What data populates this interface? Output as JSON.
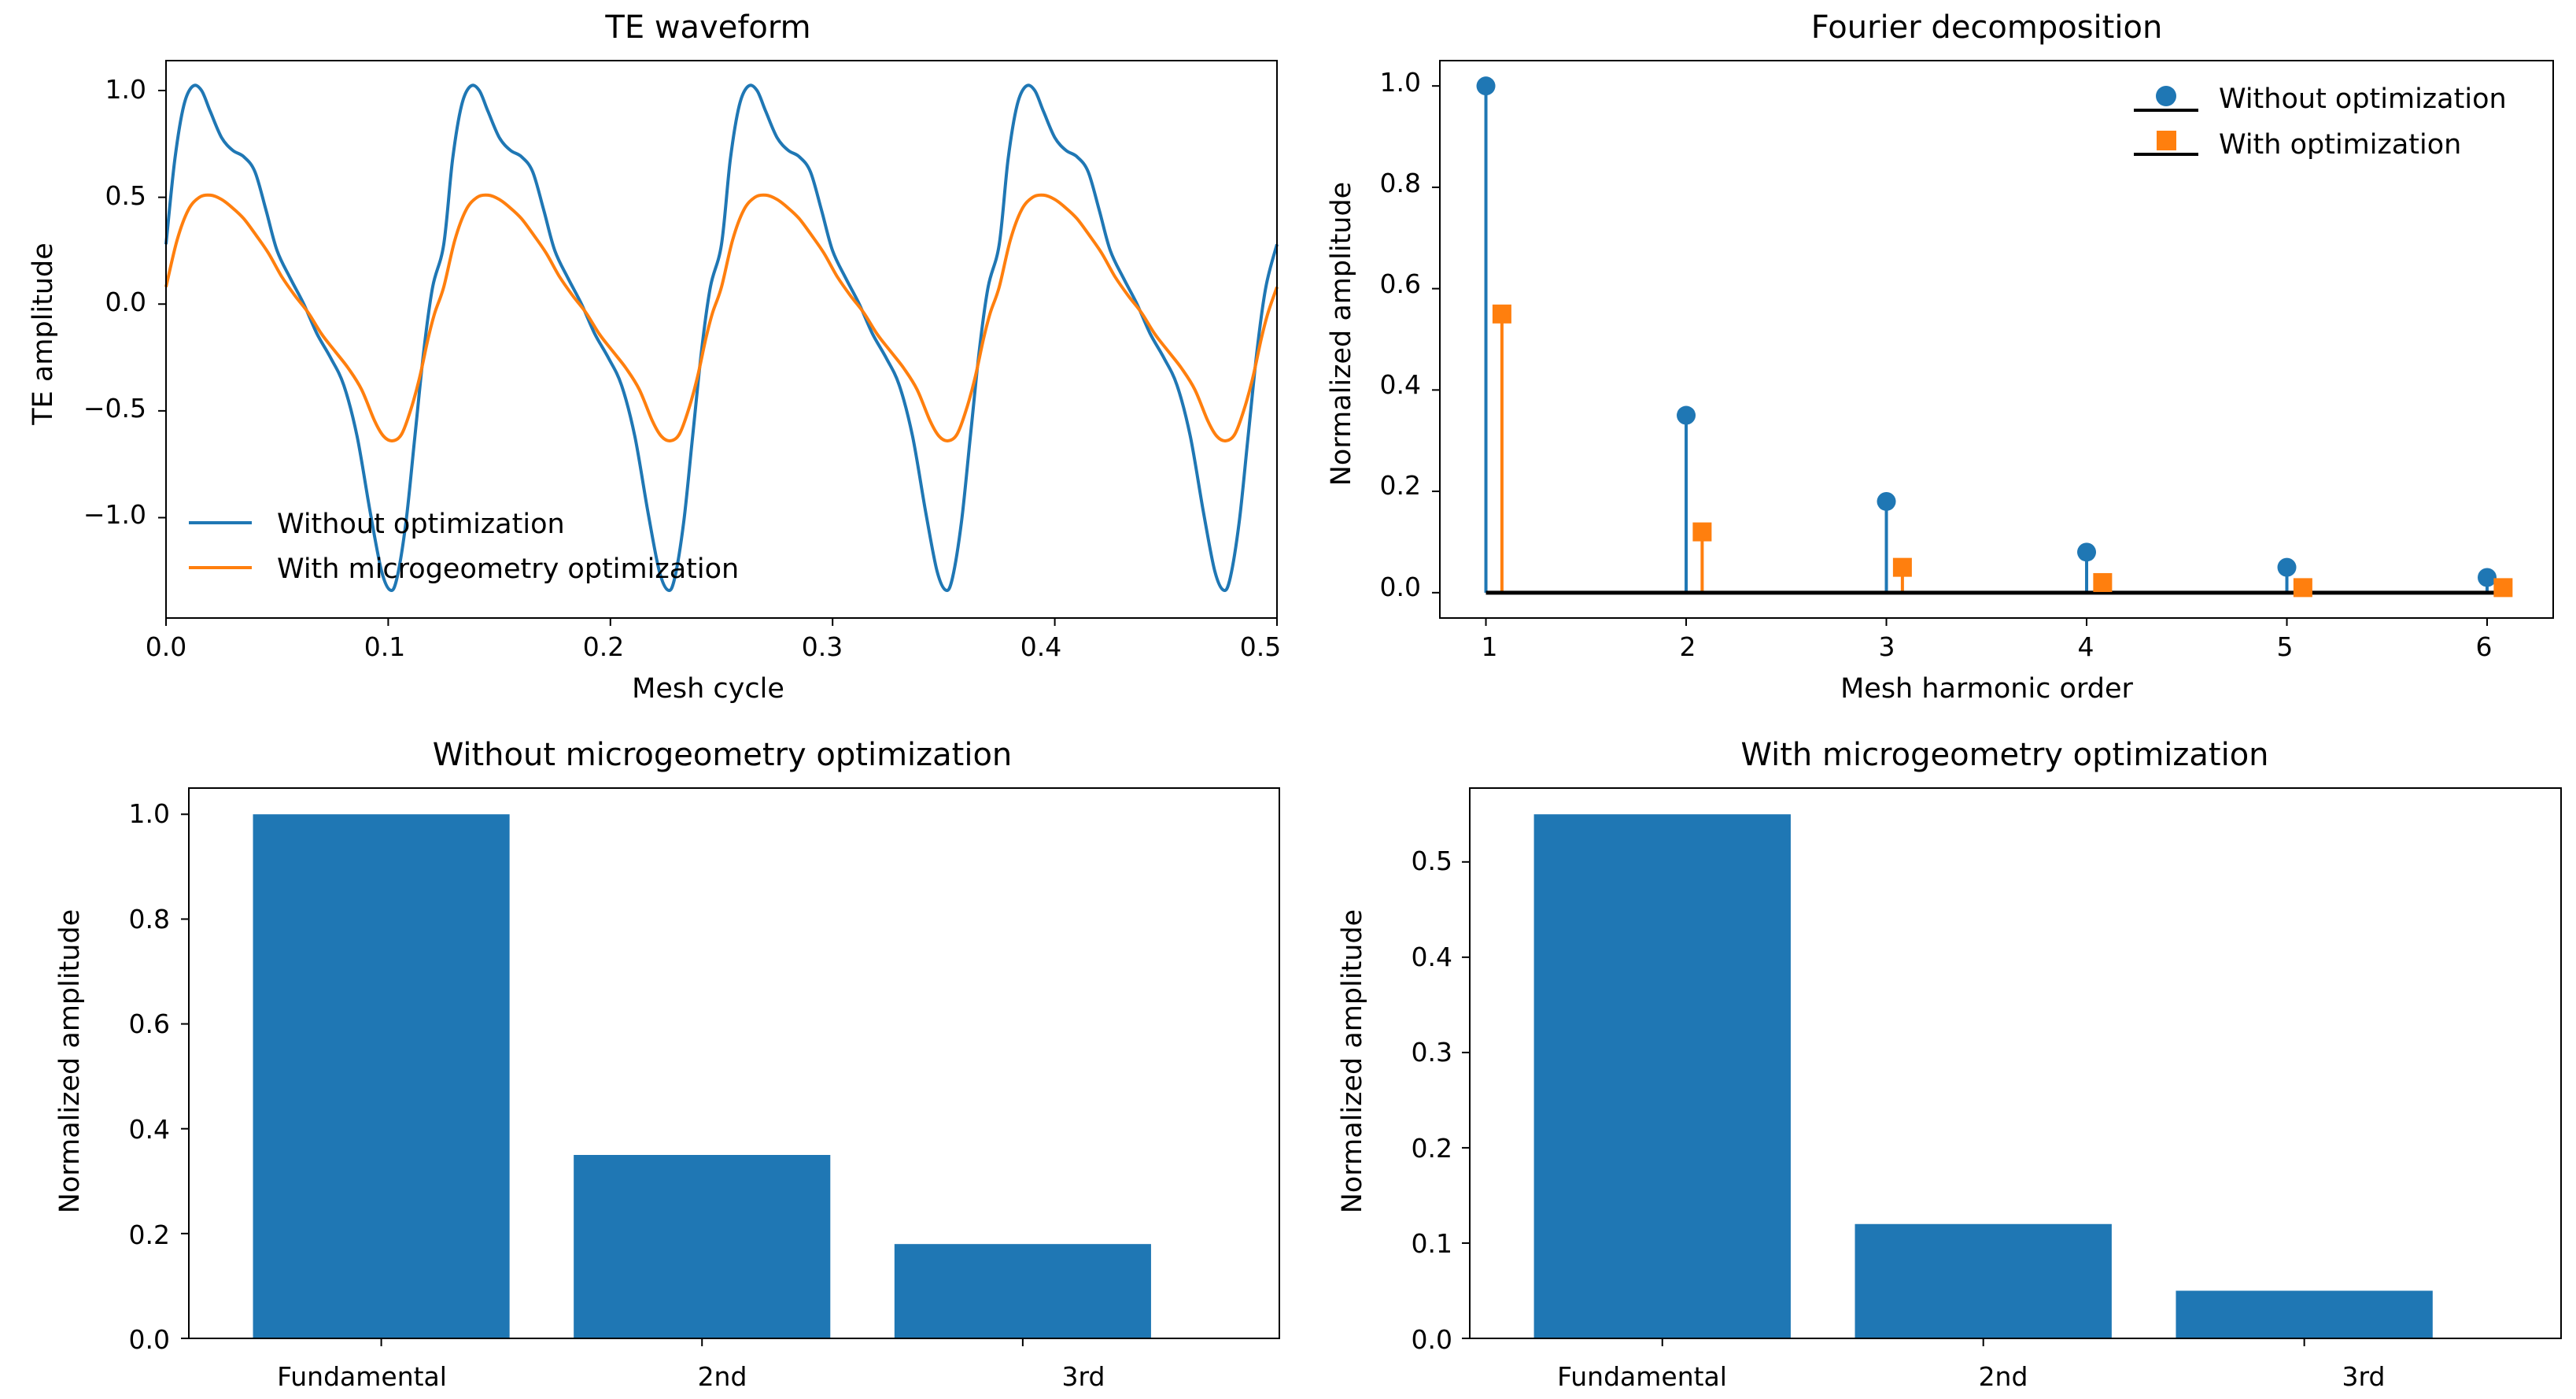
{
  "colors": {
    "without": "#1f77b4",
    "with": "#ff7f0e",
    "baseline": "#000000",
    "axis": "#000000"
  },
  "chart_data": [
    {
      "type": "line",
      "title": "TE waveform",
      "xlabel": "Mesh cycle",
      "ylabel": "TE amplitude",
      "xlim": [
        0.0,
        0.5
      ],
      "ylim": [
        -1.47,
        1.14
      ],
      "x_ticks": [
        "0.0",
        "0.1",
        "0.2",
        "0.3",
        "0.4",
        "0.5"
      ],
      "y_ticks": [
        "−1.0",
        "−0.5",
        "0.0",
        "0.5",
        "1.0"
      ],
      "period": 0.125,
      "legend_position": "lower-left",
      "series": [
        {
          "name": "Without optimization",
          "x": [
            0.0,
            0.004,
            0.008,
            0.012,
            0.016,
            0.02,
            0.025,
            0.03,
            0.035,
            0.04,
            0.045,
            0.05,
            0.056,
            0.062,
            0.068,
            0.074,
            0.08,
            0.086,
            0.092,
            0.097,
            0.101,
            0.104,
            0.108,
            0.112,
            0.116,
            0.12,
            0.125
          ],
          "y": [
            0.28,
            0.68,
            0.93,
            1.02,
            1.0,
            0.9,
            0.78,
            0.72,
            0.69,
            0.62,
            0.44,
            0.25,
            0.12,
            0.0,
            -0.14,
            -0.25,
            -0.38,
            -0.62,
            -0.98,
            -1.25,
            -1.34,
            -1.28,
            -1.02,
            -0.62,
            -0.22,
            0.08,
            0.28
          ]
        },
        {
          "name": "With microgeometry optimization",
          "x": [
            0.0,
            0.005,
            0.01,
            0.015,
            0.02,
            0.025,
            0.03,
            0.035,
            0.04,
            0.046,
            0.052,
            0.058,
            0.064,
            0.07,
            0.076,
            0.082,
            0.088,
            0.094,
            0.098,
            0.102,
            0.106,
            0.11,
            0.114,
            0.118,
            0.121,
            0.125
          ],
          "y": [
            0.08,
            0.3,
            0.44,
            0.5,
            0.51,
            0.49,
            0.45,
            0.4,
            0.33,
            0.24,
            0.13,
            0.04,
            -0.04,
            -0.14,
            -0.22,
            -0.3,
            -0.4,
            -0.55,
            -0.62,
            -0.64,
            -0.61,
            -0.5,
            -0.35,
            -0.16,
            -0.04,
            0.08
          ]
        }
      ]
    },
    {
      "type": "stem",
      "title": "Fourier decomposition",
      "xlabel": "Mesh harmonic order",
      "ylabel": "Normalized amplitude",
      "xlim": [
        0.77,
        6.33
      ],
      "ylim": [
        -0.05,
        1.05
      ],
      "x_ticks": [
        "1",
        "2",
        "3",
        "4",
        "5",
        "6"
      ],
      "y_ticks": [
        "0.0",
        "0.2",
        "0.4",
        "0.6",
        "0.8",
        "1.0"
      ],
      "legend_position": "top-right",
      "series": [
        {
          "name": "Without optimization",
          "marker": "circle",
          "x": [
            1,
            2,
            3,
            4,
            5,
            6
          ],
          "values": [
            1.0,
            0.35,
            0.18,
            0.08,
            0.05,
            0.03
          ]
        },
        {
          "name": "With optimization",
          "marker": "square",
          "x": [
            1.08,
            2.08,
            3.08,
            4.08,
            5.08,
            6.08
          ],
          "values": [
            0.55,
            0.12,
            0.05,
            0.02,
            0.01,
            0.01
          ]
        }
      ]
    },
    {
      "type": "bar",
      "title": "Without microgeometry optimization",
      "xlabel": "",
      "ylabel": "Normalized amplitude",
      "categories": [
        "Fundamental",
        "2nd",
        "3rd"
      ],
      "values": [
        1.0,
        0.35,
        0.18
      ],
      "ylim": [
        0.0,
        1.05
      ],
      "y_ticks": [
        "0.0",
        "0.2",
        "0.4",
        "0.6",
        "0.8",
        "1.0"
      ]
    },
    {
      "type": "bar",
      "title": "With microgeometry optimization",
      "xlabel": "",
      "ylabel": "Normalized amplitude",
      "categories": [
        "Fundamental",
        "2nd",
        "3rd"
      ],
      "values": [
        0.55,
        0.12,
        0.05
      ],
      "ylim": [
        0.0,
        0.5775
      ],
      "y_ticks": [
        "0.0",
        "0.1",
        "0.2",
        "0.3",
        "0.4",
        "0.5"
      ]
    }
  ]
}
